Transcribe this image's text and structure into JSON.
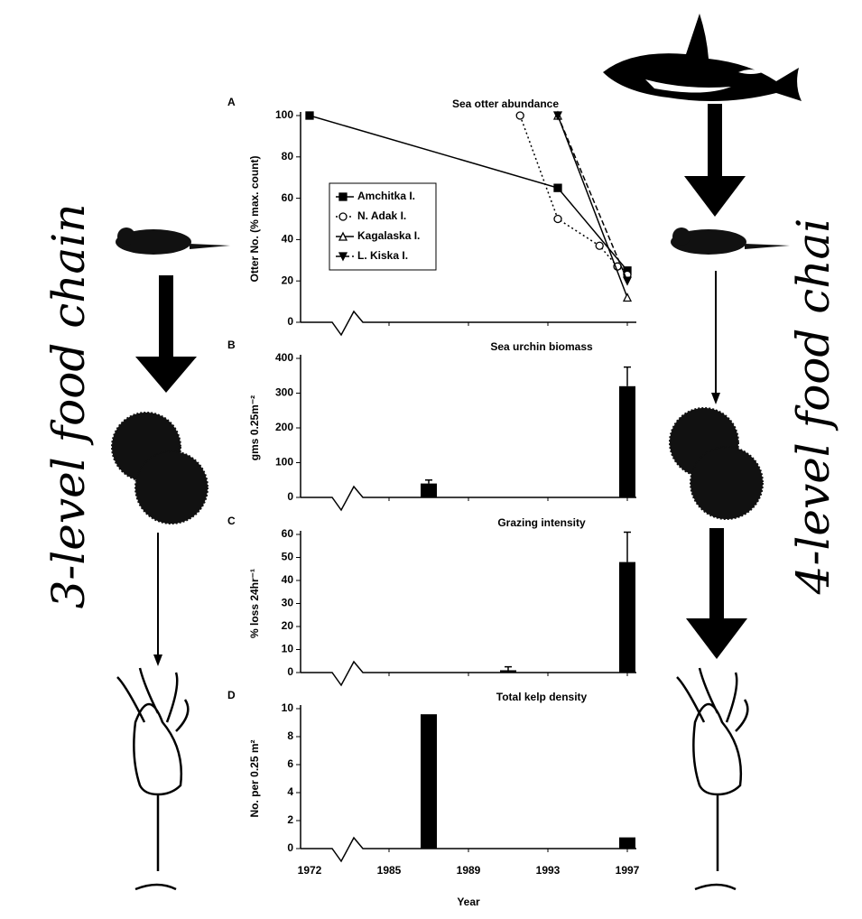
{
  "chart_data": [
    {
      "type": "line",
      "panel_label": "A",
      "title": "Sea otter abundance",
      "y_label": "Otter No. (% max. count)",
      "ylim": [
        0,
        100
      ],
      "yticks": [
        0,
        20,
        40,
        60,
        80,
        100
      ],
      "series": [
        {
          "name": "Amchitka I.",
          "color": "#000000",
          "marker": "square",
          "line_style": "solid",
          "x": [
            1972,
            1993.5,
            1997
          ],
          "values": [
            100,
            65,
            25
          ]
        },
        {
          "name": "N. Adak I.",
          "color": "#000000",
          "marker": "circle",
          "line_style": "dotted",
          "x": [
            1991.6,
            1993.5,
            1995.6,
            1996.5,
            1997
          ],
          "values": [
            100,
            50,
            37,
            27,
            23
          ]
        },
        {
          "name": "Kagalaska I.",
          "color": "#000000",
          "marker": "triangle",
          "line_style": "solid",
          "x": [
            1993.5,
            1997
          ],
          "values": [
            100,
            12
          ]
        },
        {
          "name": "L. Kiska I.",
          "color": "#000000",
          "marker": "inverted-triangle",
          "line_style": "dashed",
          "x": [
            1993.5,
            1997
          ],
          "values": [
            100,
            20
          ]
        }
      ]
    },
    {
      "type": "bar",
      "panel_label": "B",
      "title": "Sea urchin biomass",
      "y_label": "gms 0.25m⁻²",
      "ylim": [
        0,
        400
      ],
      "yticks": [
        0,
        100,
        200,
        300,
        400
      ],
      "color": "#000000",
      "x": [
        1987,
        1997
      ],
      "values": [
        40,
        320
      ],
      "errors": [
        10,
        55
      ]
    },
    {
      "type": "bar",
      "panel_label": "C",
      "title": "Grazing intensity",
      "y_label": "% loss 24hr⁻¹",
      "ylim": [
        0,
        60
      ],
      "yticks": [
        0,
        10,
        20,
        30,
        40,
        50,
        60
      ],
      "color": "#000000",
      "x": [
        1991,
        1997
      ],
      "values": [
        1,
        48
      ],
      "errors": [
        1.5,
        13
      ]
    },
    {
      "type": "bar",
      "panel_label": "D",
      "title": "Total kelp density",
      "y_label": "No. per 0.25 m²",
      "ylim": [
        0,
        10
      ],
      "yticks": [
        0,
        2,
        4,
        6,
        8,
        10
      ],
      "color": "#000000",
      "x": [
        1987,
        1997
      ],
      "values": [
        9.6,
        0.8
      ],
      "x_label": "Year",
      "xticks": [
        1972,
        1985,
        1989,
        1993,
        1997
      ]
    }
  ],
  "side_labels": {
    "left": "3-level food chain",
    "right": "4-level food chai"
  }
}
